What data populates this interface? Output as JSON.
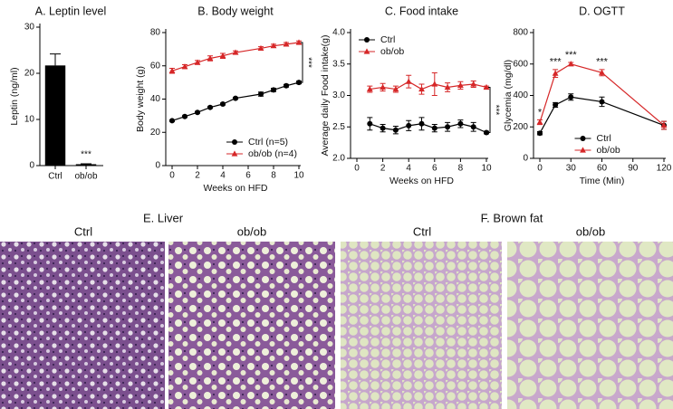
{
  "chart_data": [
    {
      "type": "bar",
      "title": "A. Leptin level",
      "ylabel": "Leptin (ng/ml)",
      "categories": [
        "Ctrl",
        "ob/ob"
      ],
      "values": [
        21.7,
        0.3
      ],
      "errors": [
        2.5,
        0.1
      ],
      "color": "#000000",
      "ylim": [
        0,
        30
      ],
      "yticks": [
        0,
        10,
        20,
        30
      ],
      "annotations": [
        {
          "text": "***",
          "x": "ob/ob"
        }
      ]
    },
    {
      "type": "line",
      "title": "B. Body weight",
      "ylabel": "Body weight (g)",
      "xlabel": "Weeks on HFD",
      "x": [
        0,
        1,
        2,
        3,
        4,
        5,
        7,
        8,
        9,
        10
      ],
      "series": [
        {
          "name": "Ctrl (n=5)",
          "color": "#000000",
          "marker": "circle",
          "values": [
            27,
            29.5,
            32,
            35,
            37,
            40.5,
            43,
            45.5,
            48,
            50
          ],
          "errors": [
            0.5,
            0.5,
            0.5,
            0.5,
            0.6,
            0.6,
            1.2,
            1,
            0.8,
            0.8
          ]
        },
        {
          "name": "ob/ob (n=4)",
          "color": "#d62728",
          "marker": "triangle",
          "values": [
            57,
            59.5,
            62,
            64.5,
            66,
            68,
            70.5,
            72,
            73,
            74
          ],
          "errors": [
            1.5,
            1.2,
            1.2,
            1.5,
            1.5,
            1,
            1,
            1,
            1,
            1
          ]
        }
      ],
      "xlim": [
        0,
        10
      ],
      "xticks": [
        0,
        2,
        4,
        6,
        8,
        10
      ],
      "ylim": [
        0,
        80
      ],
      "yticks": [
        0,
        20,
        40,
        60,
        80
      ],
      "legend": "lower right",
      "annotations": [
        {
          "text": "***"
        }
      ]
    },
    {
      "type": "line",
      "title": "C. Food intake",
      "ylabel": "Average daily Food intake(g)",
      "xlabel": "Weeks on HFD",
      "x": [
        1,
        2,
        3,
        4,
        5,
        6,
        7,
        8,
        9,
        10
      ],
      "series": [
        {
          "name": "Ctrl",
          "color": "#000000",
          "marker": "circle",
          "values": [
            2.55,
            2.48,
            2.45,
            2.52,
            2.55,
            2.48,
            2.5,
            2.55,
            2.5,
            2.41
          ],
          "errors": [
            0.1,
            0.06,
            0.06,
            0.08,
            0.1,
            0.06,
            0.07,
            0.06,
            0.07,
            0.02
          ]
        },
        {
          "name": "ob/ob",
          "color": "#d62728",
          "marker": "triangle",
          "values": [
            3.1,
            3.13,
            3.1,
            3.22,
            3.1,
            3.18,
            3.13,
            3.16,
            3.18,
            3.13
          ],
          "errors": [
            0.05,
            0.06,
            0.05,
            0.1,
            0.08,
            0.18,
            0.07,
            0.06,
            0.05,
            0.02
          ]
        }
      ],
      "xlim": [
        0,
        10
      ],
      "xticks": [
        0,
        2,
        4,
        6,
        8,
        10
      ],
      "ylim": [
        2.0,
        4.0
      ],
      "yticks": [
        {
          "value": 2,
          "label": "2.0"
        },
        {
          "value": 2.5,
          "label": "2.5"
        },
        {
          "value": 3,
          "label": "3.0"
        },
        {
          "value": 3.5,
          "label": "3.5"
        },
        {
          "value": 4,
          "label": "4.0"
        }
      ],
      "legend": "upper left",
      "annotations": [
        {
          "text": "***"
        }
      ]
    },
    {
      "type": "line",
      "title": "D. OGTT",
      "ylabel": "Glycemia (mg/dl)",
      "xlabel": "Time (Min)",
      "x": [
        0,
        15,
        30,
        60,
        120
      ],
      "series": [
        {
          "name": "Ctrl",
          "color": "#000000",
          "marker": "circle",
          "values": [
            160,
            340,
            390,
            360,
            210
          ],
          "errors": [
            10,
            15,
            20,
            30,
            25
          ]
        },
        {
          "name": "ob/ob",
          "color": "#d62728",
          "marker": "triangle",
          "values": [
            230,
            540,
            600,
            545,
            210
          ],
          "errors": [
            15,
            25,
            10,
            20,
            25
          ]
        }
      ],
      "xlim": [
        0,
        120
      ],
      "xticks": [
        0,
        30,
        60,
        90,
        120
      ],
      "ylim": [
        0,
        800
      ],
      "yticks": [
        0,
        200,
        400,
        600,
        800
      ],
      "legend": "lower center",
      "annotations": [
        {
          "text": "*",
          "x": 0
        },
        {
          "text": "***",
          "x": 15
        },
        {
          "text": "***",
          "x": 30
        },
        {
          "text": "***",
          "x": 60
        }
      ]
    }
  ],
  "histology": [
    {
      "title": "E. Liver",
      "labels": [
        "Ctrl",
        "ob/ob"
      ]
    },
    {
      "title": "F.  Brown fat",
      "labels": [
        "Ctrl",
        "ob/ob"
      ]
    }
  ]
}
